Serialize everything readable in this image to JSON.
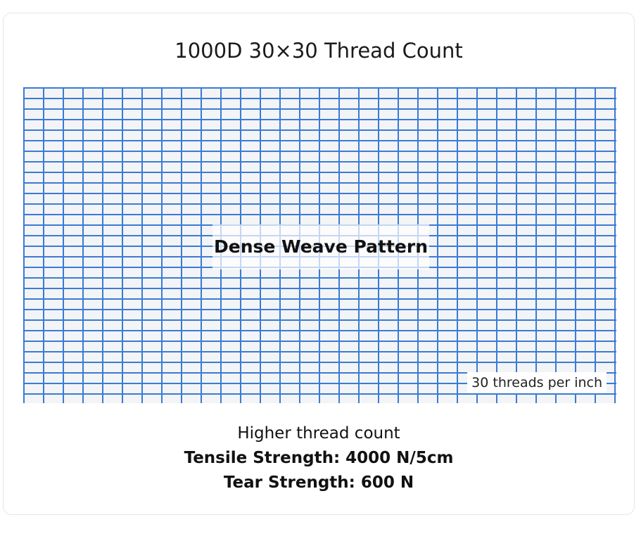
{
  "title": "1000D 30×30 Thread Count",
  "weave": {
    "center_label": "Dense Weave Pattern",
    "density_label": "30 threads per inch",
    "line_color": "#3a7bd5",
    "fill_color": "#f3f4f6"
  },
  "captions": {
    "line1": "Higher thread count",
    "line2": "Tensile Strength: 4000 N/5cm",
    "line3": "Tear Strength: 600 N"
  }
}
